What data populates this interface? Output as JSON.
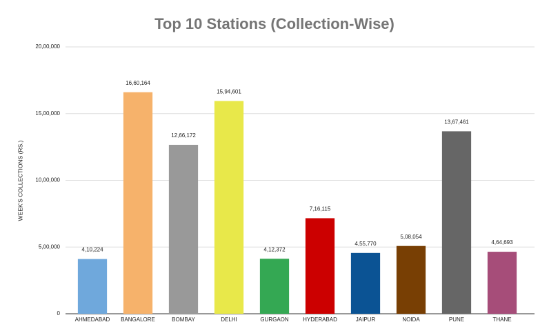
{
  "chart_data": {
    "type": "bar",
    "title": "Top 10 Stations (Collection-Wise)",
    "y_label": "WEEK'S COLLECTIONS (RS.)",
    "categories": [
      "AHMEDABAD",
      "BANGALORE",
      "BOMBAY",
      "DELHI",
      "GURGAON",
      "HYDERABAD",
      "JAIPUR",
      "NOIDA",
      "PUNE",
      "THANE"
    ],
    "values": [
      410224,
      1660164,
      1266172,
      1594601,
      412372,
      716115,
      455770,
      508054,
      1367461,
      464693
    ],
    "value_labels": [
      "4,10,224",
      "16,60,164",
      "12,66,172",
      "15,94,601",
      "4,12,372",
      "7,16,115",
      "4,55,770",
      "5,08,054",
      "13,67,461",
      "4,64,693"
    ],
    "colors": [
      "#6fa8dc",
      "#f6b26b",
      "#999999",
      "#e8e84a",
      "#34a853",
      "#cc0000",
      "#0b5394",
      "#783f04",
      "#666666",
      "#a64d79"
    ],
    "ylim": [
      0,
      2000000
    ],
    "yticks": [
      0,
      {
        "value": 500000,
        "label": "5,00,000"
      },
      {
        "value": 1000000,
        "label": "10,00,000"
      },
      {
        "value": 1500000,
        "label": "15,00,000"
      },
      {
        "value": 2000000,
        "label": "20,00,000"
      }
    ],
    "grid": true
  }
}
